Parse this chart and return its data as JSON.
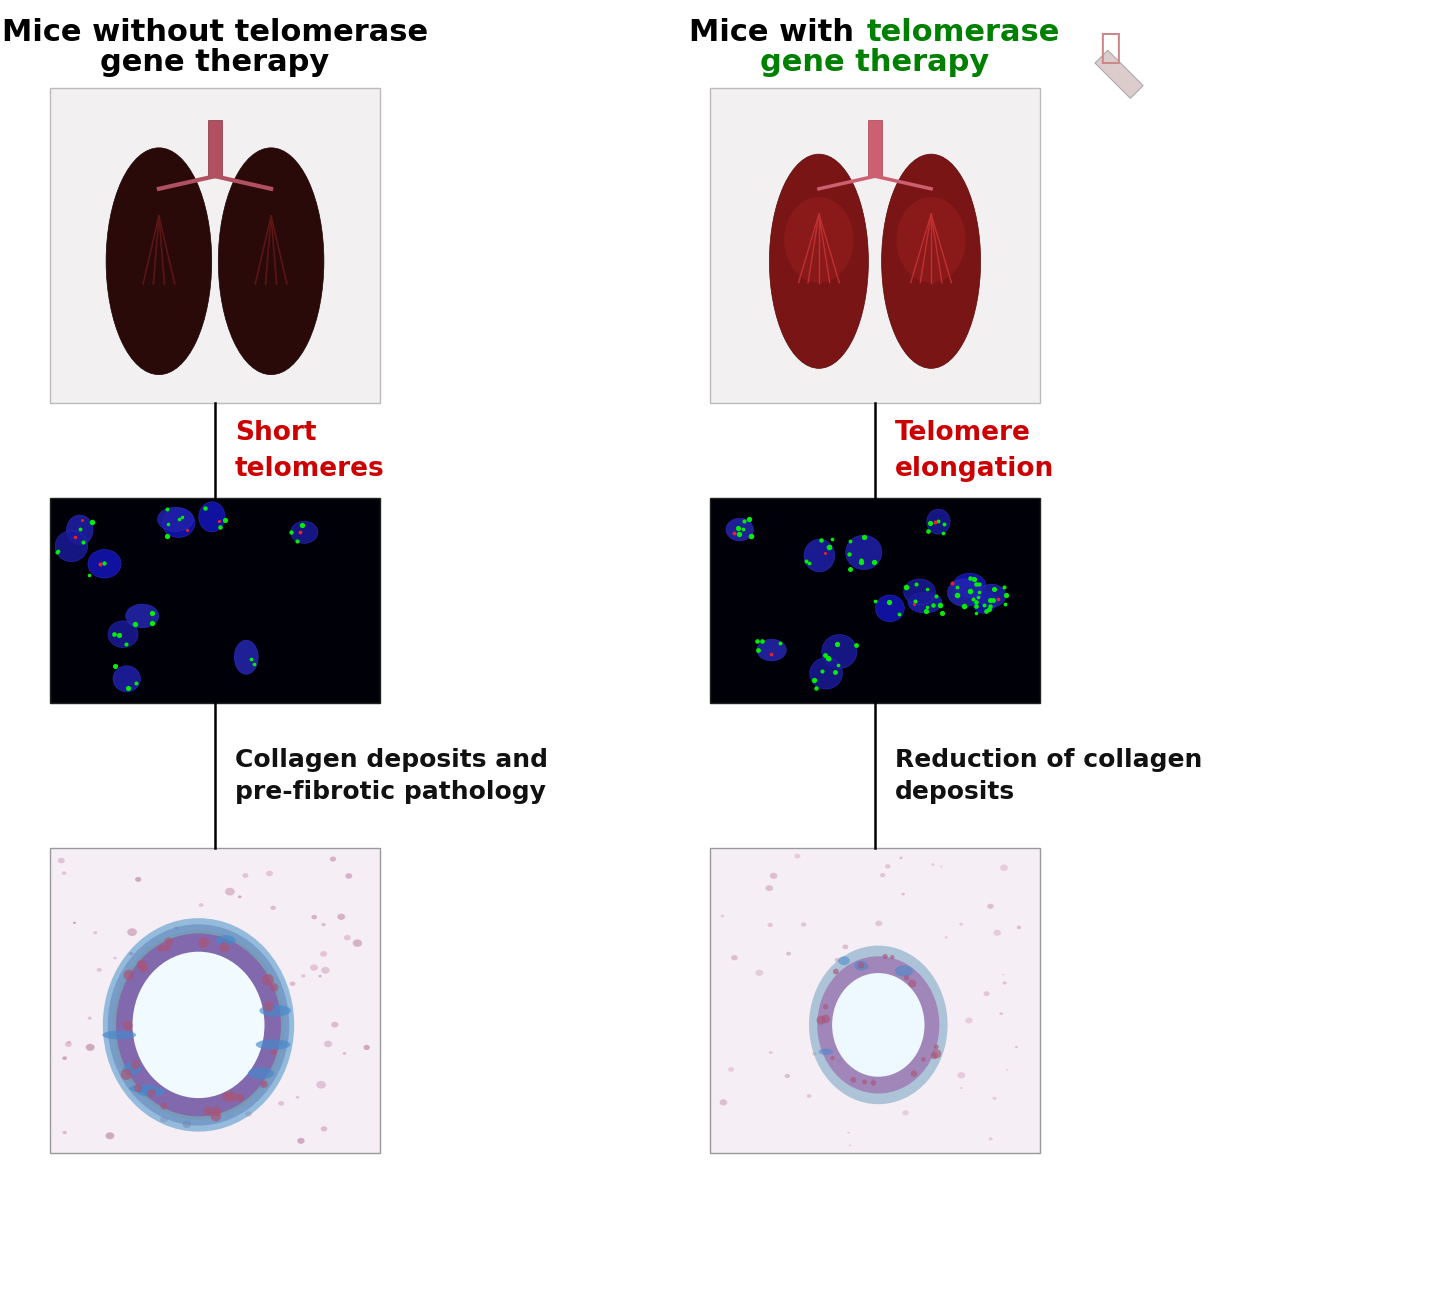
{
  "bg_color": "#ffffff",
  "left_title_line1": "Mice without telomerase",
  "left_title_line2": "gene therapy",
  "right_title_part1": "Mice with ",
  "right_title_part2": "telomerase",
  "right_title_line2": "gene therapy",
  "left_label1_line1": "Short",
  "left_label1_line2": "telomeres",
  "right_label1_line1": "Telomere",
  "right_label1_line2": "elongation",
  "left_label2_line1": "Collagen deposits and",
  "left_label2_line2": "pre-fibrotic pathology",
  "right_label2_line1": "Reduction of collagen",
  "right_label2_line2": "deposits",
  "title_color": "#000000",
  "green_color": "#008000",
  "red_color": "#cc0000",
  "black_color": "#111111",
  "title_fontsize": 22,
  "label_fontsize": 19,
  "col_label_fontsize": 18
}
